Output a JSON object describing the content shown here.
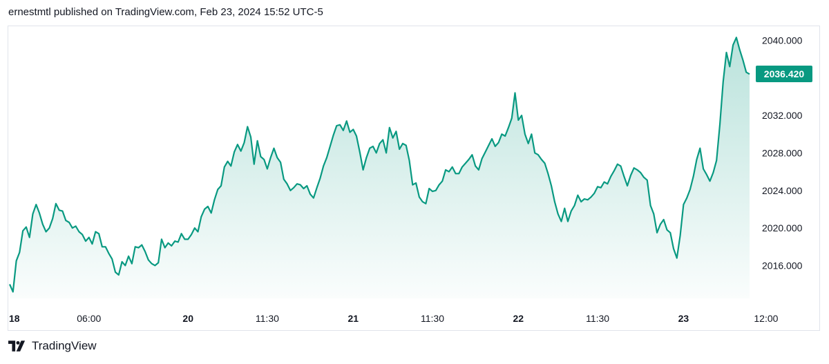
{
  "header": {
    "published_text": "ernestmtl published on TradingView.com, Feb 23, 2024 15:52 UTC-5"
  },
  "footer": {
    "brand_name": "TradingView",
    "logo_icon": "tradingview-logo-icon"
  },
  "colors": {
    "line": "#089981",
    "fill_top": "#089981",
    "price_badge_bg": "#089981",
    "price_badge_text": "#ffffff",
    "axis_text": "#131722",
    "border": "#e0e3eb"
  },
  "chart_data": {
    "type": "area",
    "ylim": [
      2012.5,
      2041.5
    ],
    "y_ticks": [
      "2040.000",
      "2036.000",
      "2032.000",
      "2028.000",
      "2024.000",
      "2020.000",
      "2016.000"
    ],
    "last_price": "2036.420",
    "x_ticks": [
      {
        "label": "18",
        "i": 0,
        "bold": true
      },
      {
        "label": "06:00",
        "i": 24,
        "bold": false
      },
      {
        "label": "20",
        "i": 54,
        "bold": true
      },
      {
        "label": "11:30",
        "i": 78,
        "bold": false
      },
      {
        "label": "21",
        "i": 104,
        "bold": true
      },
      {
        "label": "11:30",
        "i": 128,
        "bold": false
      },
      {
        "label": "22",
        "i": 154,
        "bold": true
      },
      {
        "label": "11:30",
        "i": 178,
        "bold": false
      },
      {
        "label": "23",
        "i": 204,
        "bold": true
      },
      {
        "label": "12:00",
        "i": 229,
        "bold": false
      }
    ],
    "values": [
      2014.0,
      2013.2,
      2016.5,
      2017.4,
      2019.7,
      2020.1,
      2019.0,
      2021.5,
      2022.5,
      2021.6,
      2020.4,
      2019.6,
      2020.0,
      2021.0,
      2022.6,
      2021.9,
      2021.8,
      2020.8,
      2020.6,
      2020.0,
      2020.2,
      2019.6,
      2019.3,
      2018.6,
      2019.0,
      2018.3,
      2019.6,
      2019.4,
      2018.0,
      2018.0,
      2017.3,
      2016.7,
      2015.3,
      2015.0,
      2016.4,
      2016.0,
      2017.0,
      2016.2,
      2018.0,
      2017.9,
      2018.2,
      2017.5,
      2016.6,
      2016.2,
      2016.0,
      2016.3,
      2018.8,
      2017.9,
      2018.4,
      2018.1,
      2018.6,
      2018.5,
      2019.4,
      2018.8,
      2018.8,
      2019.3,
      2020.0,
      2019.6,
      2021.2,
      2022.0,
      2022.3,
      2021.6,
      2023.0,
      2024.1,
      2024.5,
      2026.5,
      2027.1,
      2026.6,
      2028.1,
      2028.9,
      2028.2,
      2029.1,
      2030.8,
      2029.7,
      2026.8,
      2029.3,
      2027.6,
      2027.3,
      2026.3,
      2027.5,
      2028.5,
      2027.5,
      2027.0,
      2025.2,
      2024.7,
      2024.0,
      2024.3,
      2024.7,
      2024.6,
      2024.2,
      2024.5,
      2023.6,
      2023.2,
      2024.3,
      2025.3,
      2026.6,
      2027.5,
      2028.7,
      2029.9,
      2030.9,
      2031.0,
      2030.4,
      2031.4,
      2030.2,
      2030.5,
      2029.8,
      2028.1,
      2026.2,
      2027.5,
      2028.5,
      2028.7,
      2028.0,
      2029.0,
      2029.4,
      2028.0,
      2030.7,
      2029.6,
      2030.3,
      2028.4,
      2029.0,
      2028.8,
      2027.2,
      2024.6,
      2024.8,
      2023.3,
      2022.8,
      2022.6,
      2024.2,
      2023.9,
      2024.0,
      2024.6,
      2025.0,
      2026.2,
      2026.0,
      2026.5,
      2025.8,
      2025.8,
      2026.5,
      2026.9,
      2027.3,
      2027.8,
      2026.6,
      2026.2,
      2027.4,
      2028.1,
      2028.8,
      2029.5,
      2028.7,
      2029.1,
      2030.0,
      2029.8,
      2030.7,
      2031.7,
      2034.4,
      2031.5,
      2032.0,
      2030.0,
      2029.0,
      2030.0,
      2028.0,
      2027.8,
      2027.3,
      2026.9,
      2025.8,
      2024.5,
      2022.8,
      2021.5,
      2020.7,
      2022.1,
      2020.7,
      2021.8,
      2022.4,
      2023.5,
      2022.8,
      2023.1,
      2023.0,
      2023.3,
      2023.7,
      2024.4,
      2024.3,
      2024.9,
      2024.7,
      2025.5,
      2026.1,
      2026.8,
      2026.6,
      2025.5,
      2024.5,
      2025.6,
      2026.4,
      2026.2,
      2025.9,
      2025.4,
      2025.1,
      2022.4,
      2021.5,
      2019.5,
      2020.4,
      2020.9,
      2019.8,
      2019.5,
      2017.8,
      2016.8,
      2019.2,
      2022.5,
      2023.2,
      2024.1,
      2025.5,
      2027.3,
      2028.5,
      2026.3,
      2025.7,
      2025.0,
      2025.9,
      2027.2,
      2031.0,
      2035.6,
      2038.7,
      2037.2,
      2039.5,
      2040.3,
      2039.0,
      2037.9,
      2036.6,
      2036.4
    ]
  }
}
